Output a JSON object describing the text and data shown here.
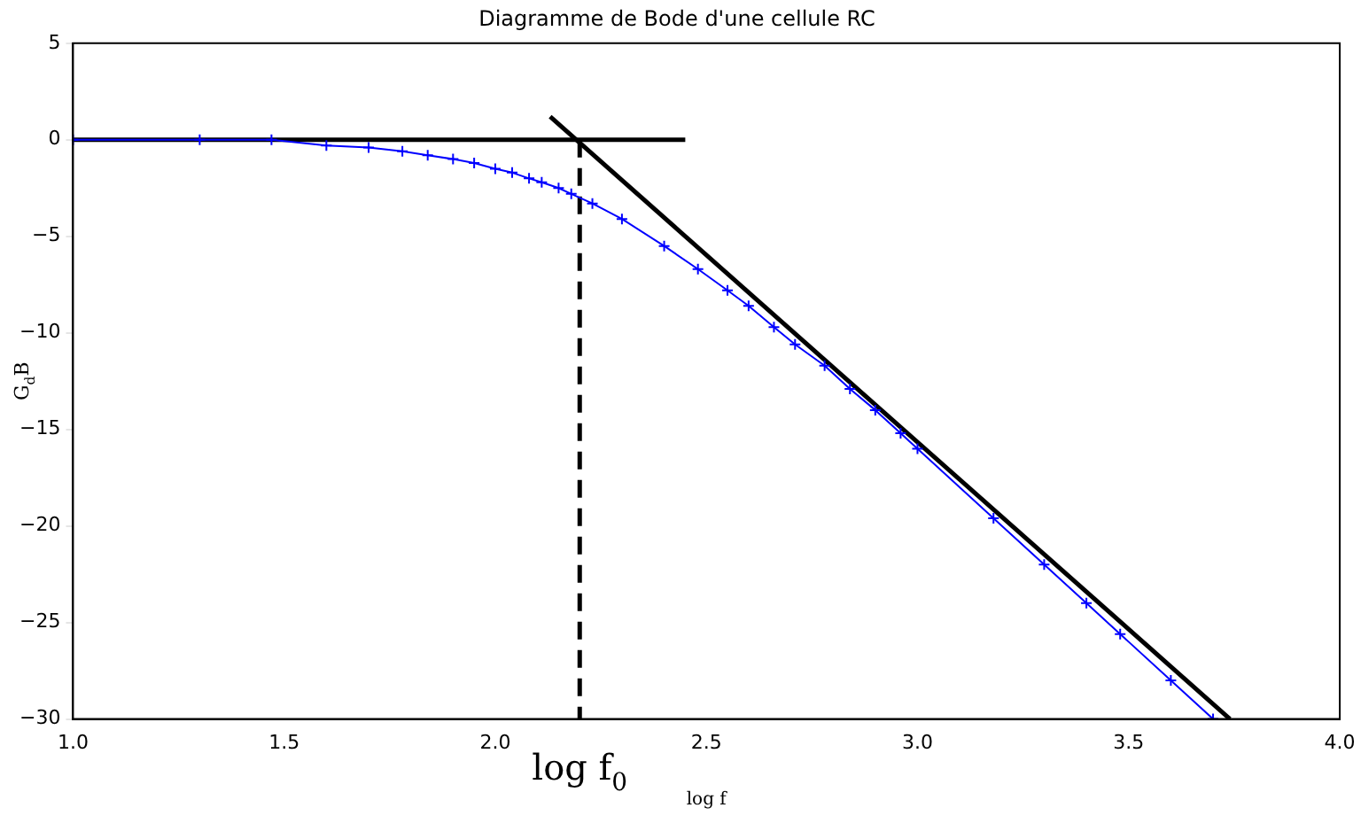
{
  "chart_data": {
    "type": "line",
    "title": "Diagramme de Bode d'une cellule RC",
    "xlabel": "log f",
    "ylabel": "G$_{d}$B",
    "xlim": [
      1.0,
      4.0
    ],
    "ylim": [
      -30,
      5
    ],
    "xticks": [
      {
        "value": 1,
        "label": "1.0"
      },
      {
        "value": 1.5,
        "label": "1.5"
      },
      {
        "value": 2,
        "label": "2.0"
      },
      {
        "value": 2.5,
        "label": "2.5"
      },
      {
        "value": 3,
        "label": "3.0"
      },
      {
        "value": 3.5,
        "label": "3.5"
      },
      {
        "value": 4,
        "label": "4.0"
      }
    ],
    "yticks": [
      5,
      0,
      {
        "value": -5,
        "label": "−5"
      },
      {
        "value": -10,
        "label": "−10"
      },
      {
        "value": -15,
        "label": "−15"
      },
      {
        "value": -20,
        "label": "−20"
      },
      {
        "value": -25,
        "label": "−25"
      },
      {
        "value": -30,
        "label": "−30"
      }
    ],
    "grid": false,
    "legend": false,
    "annotations": [
      "log f$_{0}$"
    ],
    "series": [
      {
        "color": "#0000ff",
        "marker": "cross",
        "line_style": "solid",
        "x": [
          1.0,
          1.3,
          1.47,
          1.6,
          1.7,
          1.78,
          1.84,
          1.9,
          1.95,
          2.0,
          2.04,
          2.08,
          2.11,
          2.15,
          2.18,
          2.23,
          2.3,
          2.4,
          2.48,
          2.55,
          2.6,
          2.66,
          2.71,
          2.78,
          2.84,
          2.9,
          2.96,
          3.0,
          3.18,
          3.3,
          3.4,
          3.48,
          3.6,
          3.7
        ],
        "values": [
          0,
          0,
          0,
          -0.3,
          -0.4,
          -0.6,
          -0.8,
          -1.0,
          -1.2,
          -1.5,
          -1.7,
          -2.0,
          -2.2,
          -2.5,
          -2.8,
          -3.3,
          -4.1,
          -5.5,
          -6.7,
          -7.8,
          -8.6,
          -9.7,
          -10.6,
          -11.7,
          -12.9,
          -14.0,
          -15.2,
          -16.0,
          -19.6,
          -22.0,
          -24.0,
          -25.6,
          -28.0,
          -30.0
        ]
      },
      {
        "color": "#000000",
        "marker": "none",
        "line_style": "solid",
        "x": [
          1.0,
          2.45
        ],
        "values": [
          0,
          0
        ]
      },
      {
        "color": "#000000",
        "marker": "none",
        "line_style": "solid",
        "x": [
          2.13,
          3.74
        ],
        "values": [
          1.2,
          -30
        ]
      },
      {
        "color": "#000000",
        "marker": "none",
        "line_style": "dashed",
        "x": [
          2.2,
          2.2
        ],
        "values": [
          0,
          -30
        ]
      }
    ]
  }
}
